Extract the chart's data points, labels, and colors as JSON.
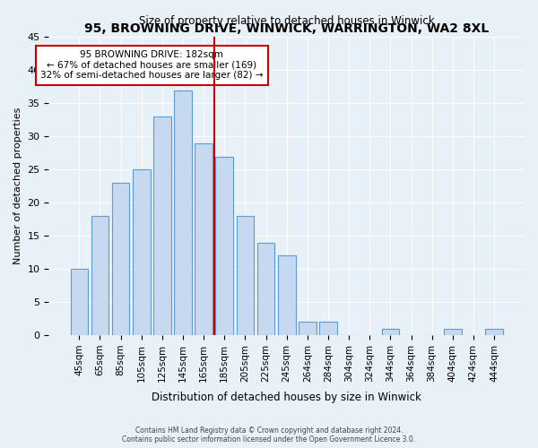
{
  "title": "95, BROWNING DRIVE, WINWICK, WARRINGTON, WA2 8XL",
  "subtitle": "Size of property relative to detached houses in Winwick",
  "xlabel": "Distribution of detached houses by size in Winwick",
  "ylabel": "Number of detached properties",
  "bar_labels": [
    "45sqm",
    "65sqm",
    "85sqm",
    "105sqm",
    "125sqm",
    "145sqm",
    "165sqm",
    "185sqm",
    "205sqm",
    "225sqm",
    "245sqm",
    "264sqm",
    "284sqm",
    "304sqm",
    "324sqm",
    "344sqm",
    "364sqm",
    "384sqm",
    "404sqm",
    "424sqm",
    "444sqm"
  ],
  "bar_values": [
    10,
    18,
    23,
    25,
    33,
    37,
    29,
    27,
    18,
    14,
    12,
    2,
    2,
    0,
    0,
    1,
    0,
    0,
    1,
    0,
    1
  ],
  "bar_color": "#c6d9f0",
  "bar_edge_color": "#5b9bd5",
  "vline_x": 7.0,
  "vline_color": "#cc0000",
  "annotation_title": "95 BROWNING DRIVE: 182sqm",
  "annotation_line1": "← 67% of detached houses are smaller (169)",
  "annotation_line2": "32% of semi-detached houses are larger (82) →",
  "annotation_box_color": "#ffffff",
  "annotation_box_edge": "#cc0000",
  "ylim": [
    0,
    45
  ],
  "yticks": [
    0,
    5,
    10,
    15,
    20,
    25,
    30,
    35,
    40,
    45
  ],
  "footer_line1": "Contains HM Land Registry data © Crown copyright and database right 2024.",
  "footer_line2": "Contains public sector information licensed under the Open Government Licence 3.0.",
  "bg_color": "#e8f0f8",
  "plot_bg_color": "#e8f0f8"
}
